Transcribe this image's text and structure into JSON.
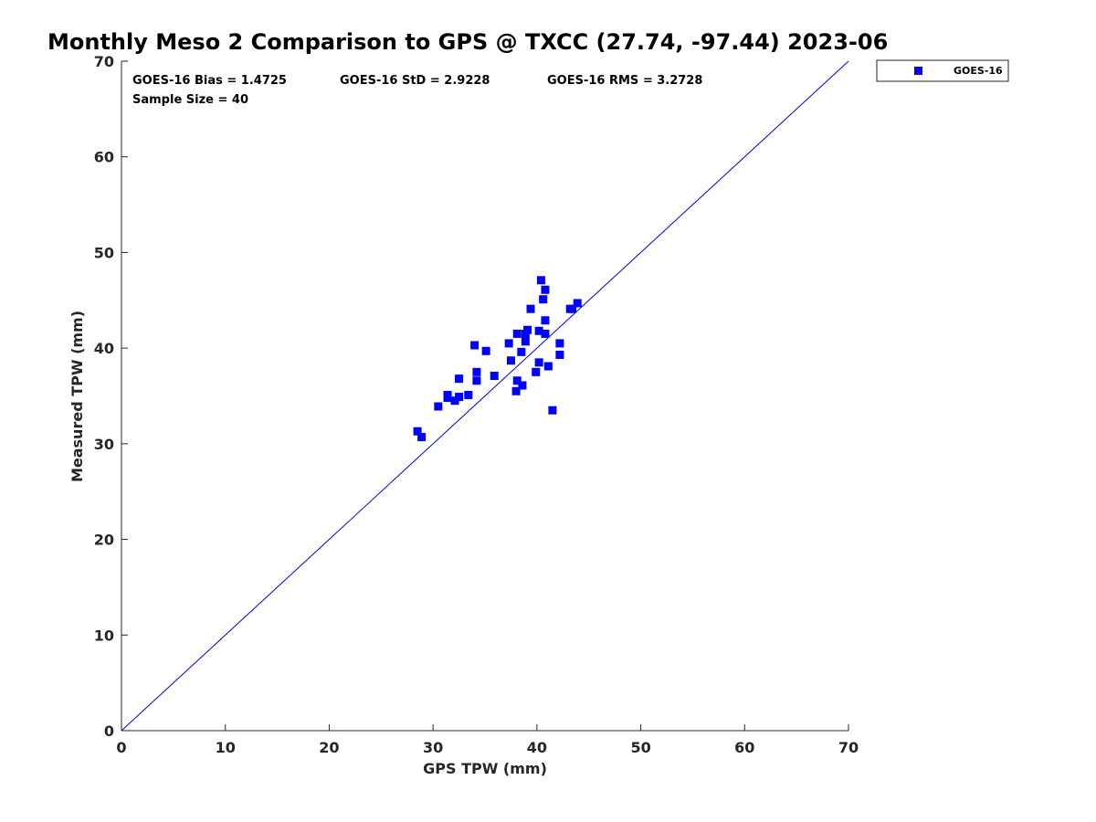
{
  "chart_data": {
    "type": "scatter",
    "title": "Monthly Meso 2 Comparison to GPS @ TXCC (27.74, -97.44) 2023-06",
    "xlabel": "GPS TPW (mm)",
    "ylabel": "Measured TPW (mm)",
    "xlim": [
      0,
      70
    ],
    "ylim": [
      0,
      70
    ],
    "xticks": [
      0,
      10,
      20,
      30,
      40,
      50,
      60,
      70
    ],
    "yticks": [
      0,
      10,
      20,
      30,
      40,
      50,
      60,
      70
    ],
    "grid": false,
    "legend_position": "outside-top-right",
    "reference_line": {
      "name": "1:1 line",
      "x": [
        0,
        70
      ],
      "y": [
        0,
        70
      ],
      "color": "#0000e6"
    },
    "stats": {
      "bias": "GOES-16 Bias = 1.4725",
      "std": "GOES-16 StD = 2.9228",
      "rms": "GOES-16 RMS = 3.2728",
      "sample": "Sample Size = 40"
    },
    "series": [
      {
        "name": "GOES-16",
        "marker": "square",
        "color": "#0000ff",
        "points": [
          [
            28.5,
            31.3
          ],
          [
            28.9,
            30.7
          ],
          [
            30.5,
            33.9
          ],
          [
            31.4,
            35.1
          ],
          [
            31.4,
            34.8
          ],
          [
            32.1,
            34.5
          ],
          [
            32.5,
            36.8
          ],
          [
            32.5,
            34.9
          ],
          [
            33.4,
            35.1
          ],
          [
            34.0,
            40.3
          ],
          [
            34.2,
            37.5
          ],
          [
            34.2,
            36.6
          ],
          [
            35.1,
            39.7
          ],
          [
            35.9,
            37.1
          ],
          [
            37.3,
            40.5
          ],
          [
            37.5,
            38.7
          ],
          [
            38.0,
            35.5
          ],
          [
            38.1,
            41.5
          ],
          [
            38.1,
            36.6
          ],
          [
            38.5,
            39.6
          ],
          [
            38.6,
            36.1
          ],
          [
            38.9,
            41.5
          ],
          [
            38.9,
            40.7
          ],
          [
            39.1,
            41.9
          ],
          [
            39.4,
            44.1
          ],
          [
            39.9,
            37.5
          ],
          [
            40.2,
            41.8
          ],
          [
            40.2,
            38.5
          ],
          [
            40.4,
            47.1
          ],
          [
            40.6,
            45.1
          ],
          [
            40.8,
            46.1
          ],
          [
            40.8,
            42.9
          ],
          [
            40.8,
            41.5
          ],
          [
            41.1,
            38.1
          ],
          [
            41.5,
            33.5
          ],
          [
            42.2,
            40.5
          ],
          [
            42.2,
            39.3
          ],
          [
            43.2,
            44.1
          ],
          [
            43.4,
            44.1
          ],
          [
            43.9,
            44.7
          ]
        ]
      }
    ]
  }
}
